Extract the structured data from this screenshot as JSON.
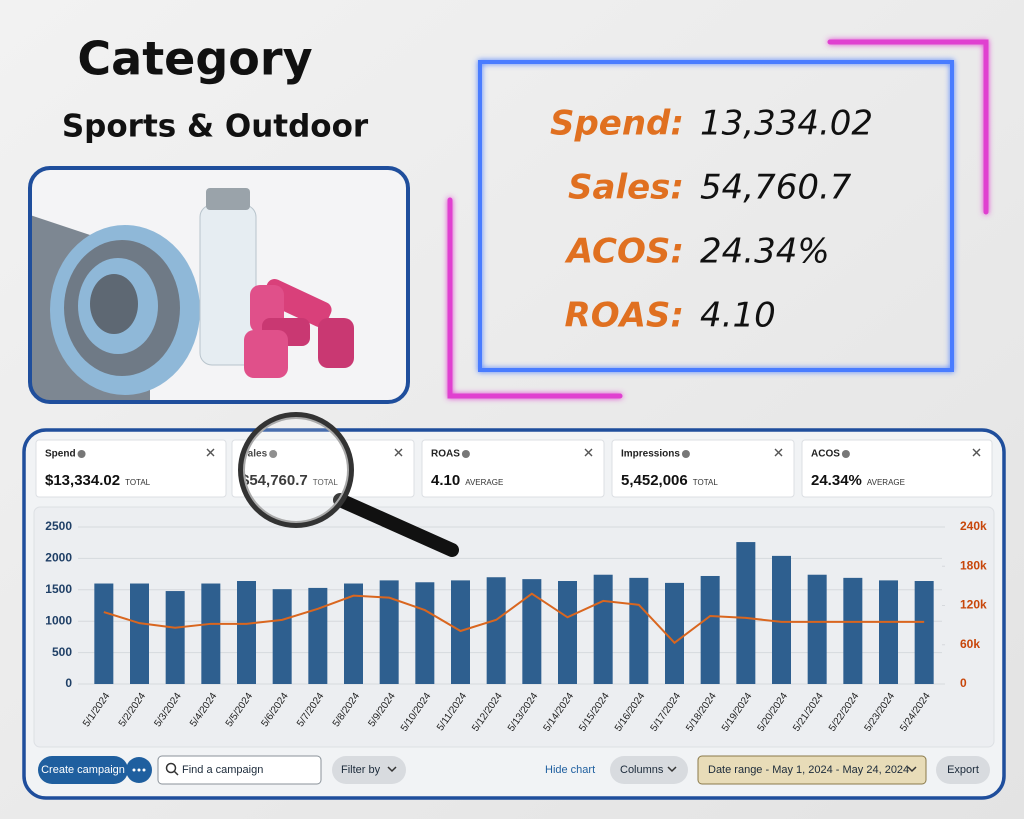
{
  "header": {
    "title": "Category",
    "subtitle": "Sports & Outdoor"
  },
  "metrics": [
    {
      "label": "Spend:",
      "value": "13,334.02"
    },
    {
      "label": "Sales:",
      "value": "54,760.7"
    },
    {
      "label": "ACOS:",
      "value": "24.34%"
    },
    {
      "label": "ROAS:",
      "value": "4.10"
    }
  ],
  "cards": [
    {
      "name": "Spend",
      "value": "$13,334.02",
      "note": "TOTAL"
    },
    {
      "name": "Sales",
      "value": "$54,760.7",
      "note": "TOTAL"
    },
    {
      "name": "ROAS",
      "value": "4.10",
      "note": "AVERAGE"
    },
    {
      "name": "Impressions",
      "value": "5,452,006",
      "note": "TOTAL"
    },
    {
      "name": "ACOS",
      "value": "24.34%",
      "note": "AVERAGE"
    }
  ],
  "toolbar": {
    "create": "Create campaign",
    "search": "Find a campaign",
    "filter": "Filter by",
    "hide": "Hide chart",
    "columns": "Columns",
    "date_range": "Date range - May 1, 2024 - May 24, 2024",
    "export": "Export"
  },
  "chart_data": {
    "type": "bar-line",
    "categories": [
      "5/1/2024",
      "5/2/2024",
      "5/3/2024",
      "5/4/2024",
      "5/5/2024",
      "5/6/2024",
      "5/7/2024",
      "5/8/2024",
      "5/9/2024",
      "5/10/2024",
      "5/11/2024",
      "5/12/2024",
      "5/13/2024",
      "5/14/2024",
      "5/15/2024",
      "5/16/2024",
      "5/17/2024",
      "5/18/2024",
      "5/19/2024",
      "5/20/2024",
      "5/21/2024",
      "5/22/2024",
      "5/23/2024",
      "5/24/2024"
    ],
    "series": [
      {
        "type": "bar",
        "color": "#2e5f8f",
        "values": [
          1600,
          1600,
          1480,
          1600,
          1640,
          1510,
          1530,
          1600,
          1650,
          1620,
          1650,
          1700,
          1670,
          1640,
          1740,
          1690,
          1610,
          1720,
          2260,
          2040,
          1740,
          1690,
          1650,
          1640
        ]
      },
      {
        "type": "line",
        "color": "#d9661f",
        "axis": "y2",
        "values": [
          110000,
          93000,
          86000,
          92000,
          92000,
          98000,
          115000,
          135000,
          132000,
          113000,
          81000,
          98000,
          138000,
          102000,
          127000,
          121000,
          63000,
          104000,
          101000,
          95000,
          95000,
          95000,
          95000,
          95000
        ]
      }
    ],
    "ylim": [
      0,
      2500
    ],
    "yticks": [
      0,
      500,
      1000,
      1500,
      2000,
      2500
    ],
    "y2lim": [
      0,
      240000
    ],
    "y2ticks": [
      0,
      {
        "value": 60000,
        "label": "60k"
      },
      {
        "value": 120000,
        "label": "120k"
      },
      {
        "value": 180000,
        "label": "180k"
      },
      {
        "value": 240000,
        "label": "240k"
      }
    ],
    "grid": true
  }
}
